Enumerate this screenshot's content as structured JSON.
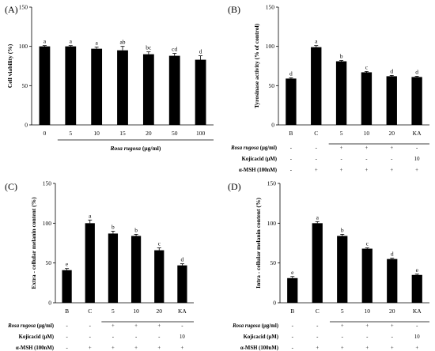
{
  "chart_data": [
    {
      "panel": "(A)",
      "type": "bar",
      "categories": [
        "0",
        "5",
        "10",
        "15",
        "20",
        "50",
        "100"
      ],
      "values": [
        100,
        100,
        97,
        95,
        90,
        88,
        83
      ],
      "errors": [
        1,
        1,
        2,
        5,
        3,
        3,
        5
      ],
      "sig": [
        "a",
        "a",
        "a",
        "ab",
        "bc",
        "cd",
        "d"
      ],
      "ylabel": "Cell viability (%)",
      "xlabel_italic": "Rosa rugosa",
      "xlabel_unit": " (μg/ml)",
      "ylim": [
        0,
        150
      ],
      "yticks": [
        "0",
        "50",
        "100",
        "150"
      ],
      "grid": false
    },
    {
      "panel": "(B)",
      "type": "bar",
      "categories": [
        "B",
        "C",
        "5",
        "10",
        "20",
        "KA"
      ],
      "values": [
        59,
        99,
        81,
        67,
        62,
        61
      ],
      "errors": [
        1,
        2,
        1,
        1,
        1,
        1
      ],
      "sig": [
        "d",
        "a",
        "b",
        "c",
        "d",
        "d"
      ],
      "ylabel": "Tyrosinase activity (% of control)",
      "ylim": [
        0,
        150
      ],
      "yticks": [
        "0",
        "50",
        "100",
        "150"
      ],
      "grid": false,
      "table": [
        {
          "label_italic": "Rosa rugosa",
          "label_rest": " (μg/ml)",
          "cells": [
            "-",
            "-",
            "+",
            "+",
            "+",
            "-"
          ]
        },
        {
          "label_italic": "",
          "label_rest": "Kojicacid (μM)",
          "cells": [
            "-",
            "-",
            "-",
            "-",
            "-",
            "10"
          ]
        },
        {
          "label_italic": "",
          "label_rest": "α-MSH (100nM)",
          "cells": [
            "-",
            "+",
            "+",
            "+",
            "+",
            "+"
          ]
        }
      ]
    },
    {
      "panel": "(C)",
      "type": "bar",
      "categories": [
        "B",
        "C",
        "5",
        "10",
        "20",
        "KA"
      ],
      "values": [
        41,
        100,
        87,
        84,
        66,
        47
      ],
      "errors": [
        2,
        4,
        3,
        2,
        3,
        2
      ],
      "sig": [
        "e",
        "a",
        "b",
        "b",
        "c",
        "d"
      ],
      "ylabel": "Extra - cellular melanin content (%)",
      "ylim": [
        0,
        150
      ],
      "yticks": [
        "0",
        "50",
        "100",
        "150"
      ],
      "grid": false,
      "table": [
        {
          "label_italic": "Rosa rugosa",
          "label_rest": " (μg/ml)",
          "cells": [
            "-",
            "-",
            "+",
            "+",
            "+",
            "-"
          ]
        },
        {
          "label_italic": "",
          "label_rest": "Kojicacid (μM)",
          "cells": [
            "-",
            "-",
            "-",
            "-",
            "-",
            "10"
          ]
        },
        {
          "label_italic": "",
          "label_rest": "α-MSH (100nM)",
          "cells": [
            "-",
            "+",
            "+",
            "+",
            "+",
            "+"
          ]
        }
      ]
    },
    {
      "panel": "(D)",
      "type": "bar",
      "categories": [
        "B",
        "C",
        "5",
        "10",
        "20",
        "KA"
      ],
      "values": [
        31,
        100,
        84,
        68,
        55,
        35
      ],
      "errors": [
        2,
        2,
        2,
        1,
        1,
        1
      ],
      "sig": [
        "e",
        "a",
        "b",
        "c",
        "d",
        "e"
      ],
      "ylabel": "Intra - cellular melanin content (%)",
      "ylim": [
        0,
        150
      ],
      "yticks": [
        "0",
        "50",
        "100",
        "150"
      ],
      "grid": false,
      "table": [
        {
          "label_italic": "Rosa rugosa",
          "label_rest": " (μg/ml)",
          "cells": [
            "-",
            "-",
            "+",
            "+",
            "+",
            "-"
          ]
        },
        {
          "label_italic": "",
          "label_rest": "Kojicacid (μM)",
          "cells": [
            "-",
            "-",
            "-",
            "-",
            "-",
            "10"
          ]
        },
        {
          "label_italic": "",
          "label_rest": "α-MSH (100nM)",
          "cells": [
            "-",
            "+",
            "+",
            "+",
            "+",
            "+"
          ]
        }
      ]
    }
  ],
  "colors": {
    "bar": "#000000",
    "axis": "#000000",
    "background": "#ffffff"
  }
}
